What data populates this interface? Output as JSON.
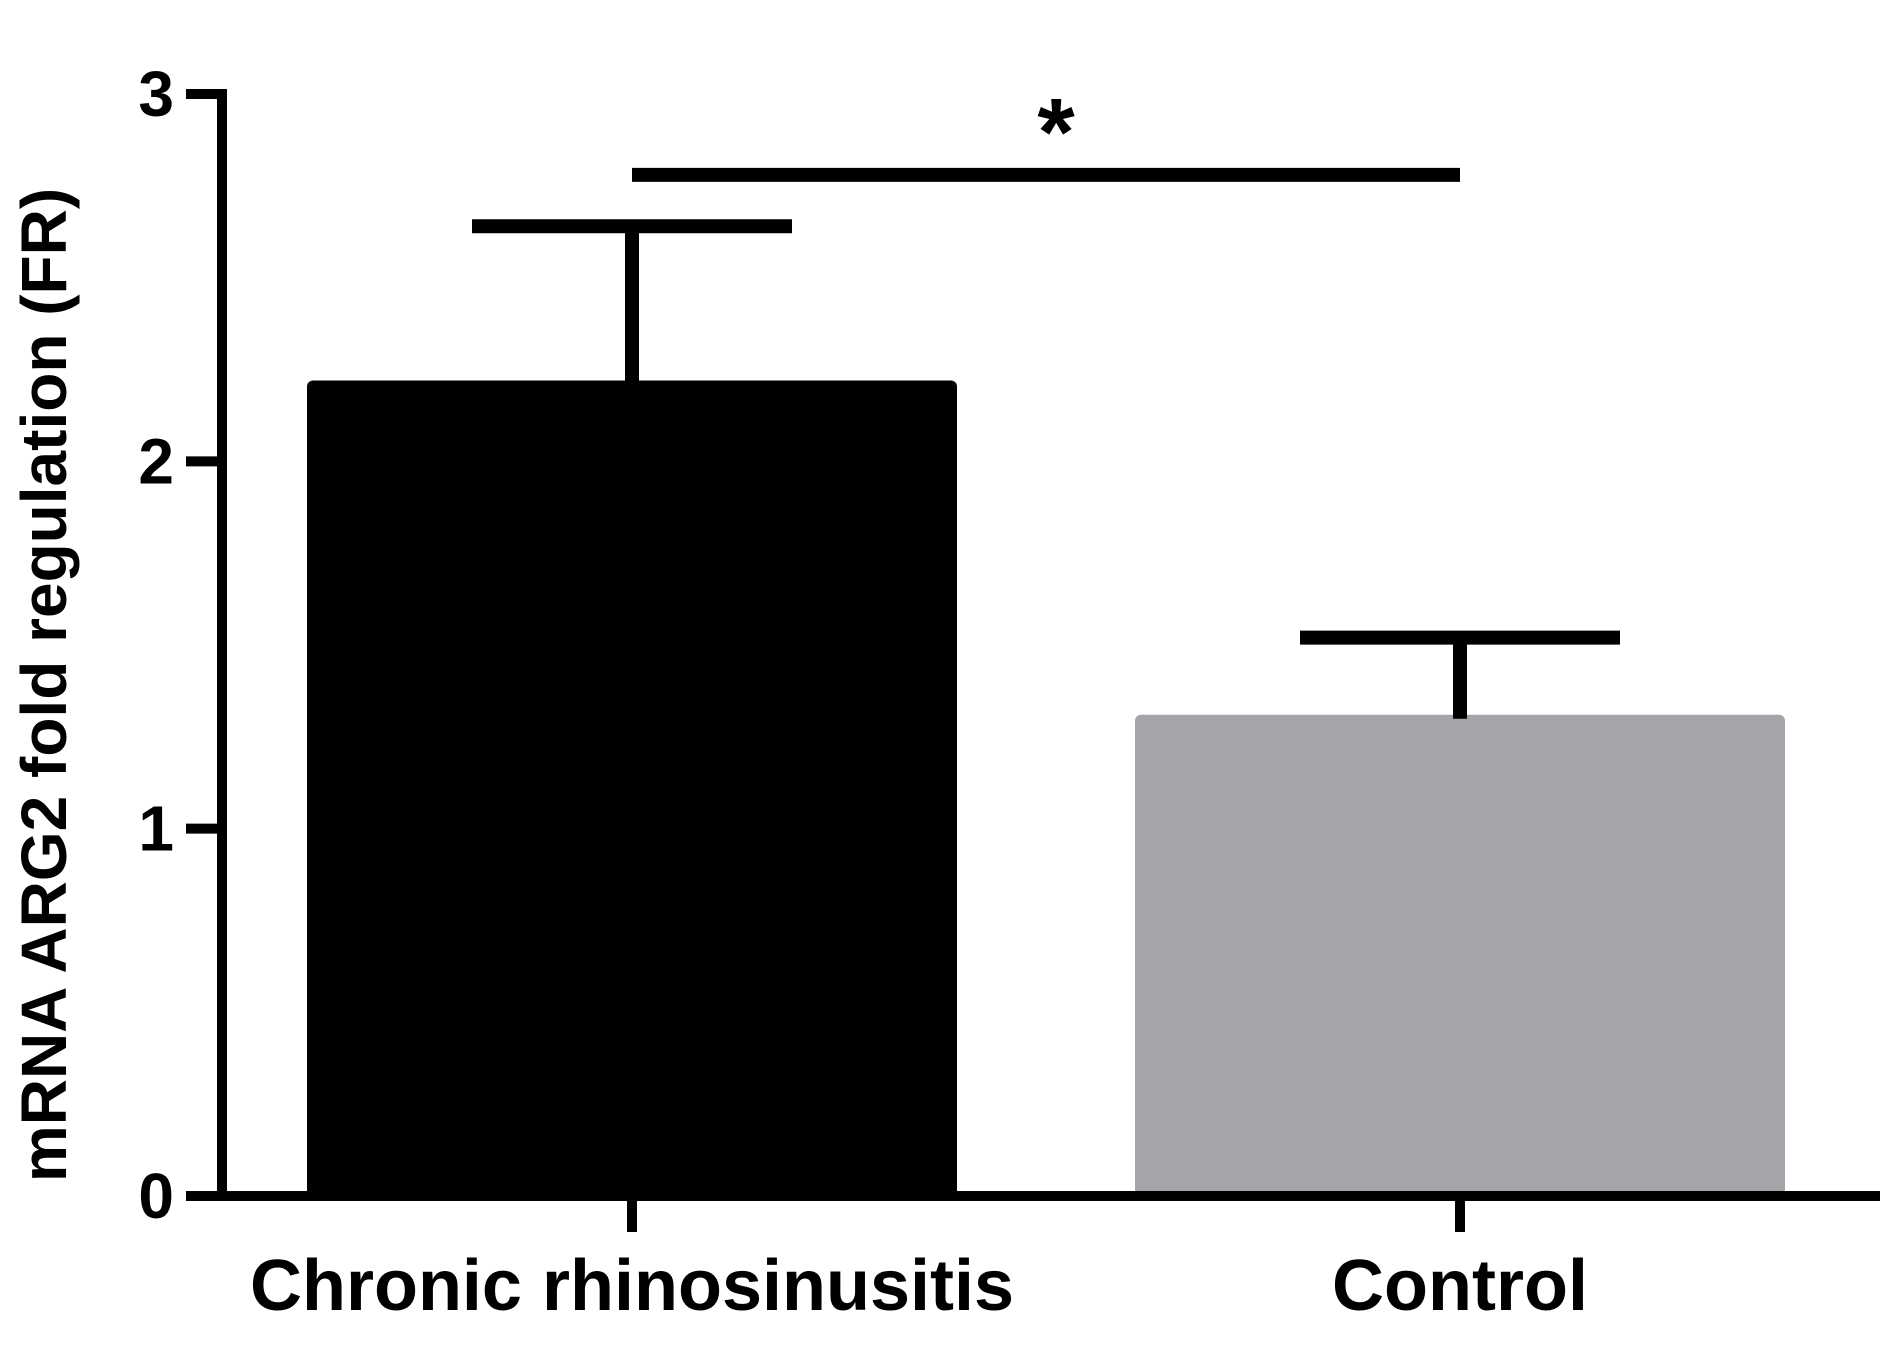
{
  "chart_data": {
    "type": "bar",
    "title": "",
    "xlabel": "",
    "ylabel": "mRNA ARG2 fold regulation (FR)",
    "ylim": [
      0,
      3
    ],
    "yticks": [
      0,
      1,
      2,
      3
    ],
    "grid": false,
    "categories": [
      "Chronic rhinosinusitis",
      "Control"
    ],
    "values": [
      2.22,
      1.31
    ],
    "error_upper": [
      2.64,
      1.52
    ],
    "colors": [
      "#000000",
      "#a5a4a9"
    ],
    "significance": {
      "label": "*",
      "between": [
        "Chronic rhinosinusitis",
        "Control"
      ],
      "y": 2.78
    }
  }
}
